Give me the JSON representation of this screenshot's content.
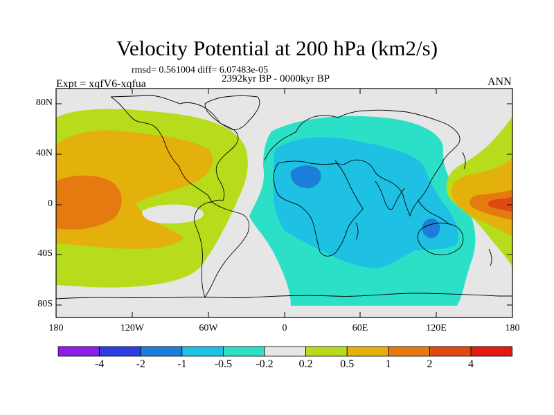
{
  "title": "Velocity Potential at 200 hPa (km2/s)",
  "stats_line": "rmsd= 0.561004 diff= 6.07483e-05",
  "period_line": "2392kyr BP - 0000kyr BP",
  "experiment_line": "Expt = xqfV6-xqfua",
  "season_label": "ANN",
  "map": {
    "lat_ticks": [
      "80N",
      "40N",
      "0",
      "40S",
      "80S"
    ],
    "lon_ticks": [
      "180",
      "120W",
      "60W",
      "0",
      "60E",
      "120E",
      "180"
    ],
    "background_color": "#e6e6e6"
  },
  "colorbar": {
    "levels": [
      "-4",
      "-2",
      "-1",
      "-0.5",
      "-0.2",
      "0.2",
      "0.5",
      "1",
      "2",
      "4"
    ],
    "colors": [
      "#8a1ee8",
      "#2c3ee0",
      "#1c7ed8",
      "#1ec0e4",
      "#2ce0c8",
      "#e6e6e6",
      "#b6dc1c",
      "#e4b00c",
      "#e47a10",
      "#e04a10",
      "#e01c10"
    ]
  }
}
